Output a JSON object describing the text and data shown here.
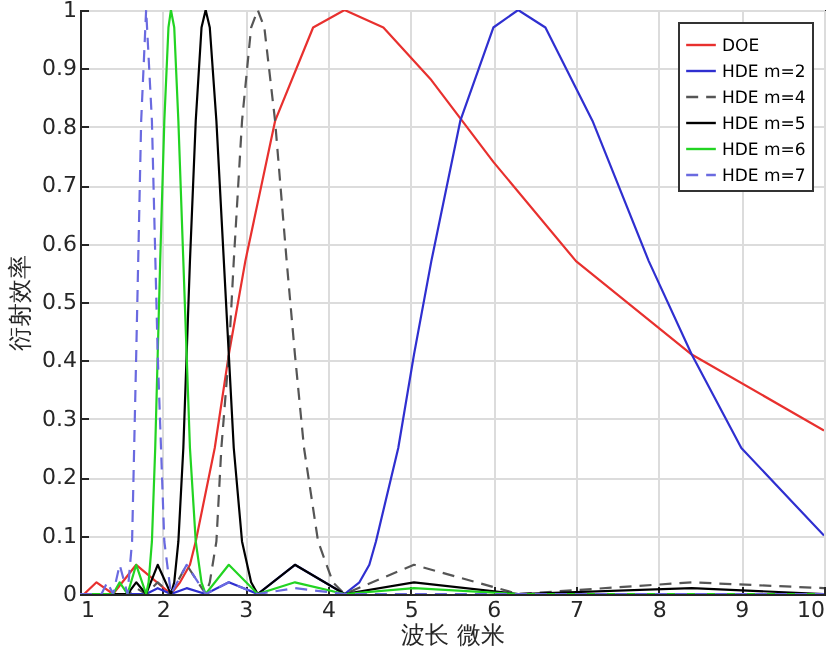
{
  "chart_data": {
    "type": "line",
    "xlabel": "波长 微米",
    "ylabel": "衍射效率",
    "xlim": [
      1,
      10
    ],
    "xticks": [
      1,
      2,
      3,
      4,
      5,
      6,
      7,
      8,
      9,
      10
    ],
    "ylim": [
      0,
      1
    ],
    "yticks": [
      0,
      0.1,
      0.2,
      0.3,
      0.4,
      0.5,
      0.6,
      0.7,
      0.8,
      0.9,
      1
    ],
    "grid": true,
    "legend": "top right",
    "series": [
      {
        "name": "DOE",
        "color": "#e8302e",
        "line_style": "solid",
        "x": [
          1,
          1.05,
          1.2,
          1.4,
          1.68,
          2.1,
          2.21,
          2.33,
          2.4,
          2.63,
          2.8,
          3.0,
          3.36,
          3.82,
          4.2,
          4.67,
          5.25,
          6.0,
          7.0,
          8.4,
          10
        ],
        "values": [
          0,
          0,
          0.02,
          0,
          0.05,
          0,
          0.02,
          0.05,
          0.09,
          0.25,
          0.41,
          0.57,
          0.81,
          0.97,
          1,
          0.97,
          0.88,
          0.74,
          0.57,
          0.41,
          0.28
        ]
      },
      {
        "name": "HDE m=2",
        "color": "#2f2fd0",
        "line_style": "solid",
        "x": [
          1,
          1.8,
          1.94,
          2.1,
          2.29,
          2.52,
          2.8,
          3.15,
          3.6,
          4.2,
          4.38,
          4.5,
          4.58,
          4.85,
          5.04,
          5.25,
          5.6,
          6.0,
          6.3,
          6.63,
          7.2,
          7.88,
          8.4,
          9.0,
          10
        ],
        "values": [
          0,
          0,
          0.01,
          0,
          0.01,
          0,
          0.02,
          0,
          0.05,
          0,
          0.02,
          0.05,
          0.09,
          0.25,
          0.41,
          0.57,
          0.81,
          0.97,
          1,
          0.97,
          0.81,
          0.57,
          0.41,
          0.25,
          0.1
        ]
      },
      {
        "name": "HDE m=4",
        "color": "#555555",
        "line_style": "dashed",
        "x": [
          1,
          1.575,
          1.68,
          1.8,
          1.94,
          2.1,
          2.29,
          2.52,
          2.57,
          2.65,
          2.71,
          2.8,
          2.86,
          2.96,
          3.07,
          3.15,
          3.23,
          3.36,
          3.5,
          3.6,
          3.71,
          3.88,
          4.06,
          4.2,
          5.04,
          6.3,
          8.4,
          10
        ],
        "values": [
          0,
          0,
          0.01,
          0,
          0.02,
          0,
          0.05,
          0,
          0.02,
          0.09,
          0.25,
          0.41,
          0.57,
          0.81,
          0.97,
          1,
          0.97,
          0.81,
          0.57,
          0.41,
          0.25,
          0.09,
          0.02,
          0,
          0.05,
          0,
          0.02,
          0.01
        ]
      },
      {
        "name": "HDE m=5",
        "color": "#000000",
        "line_style": "solid",
        "x": [
          1,
          1.575,
          1.68,
          1.8,
          1.94,
          2.1,
          2.14,
          2.19,
          2.25,
          2.29,
          2.33,
          2.4,
          2.47,
          2.52,
          2.57,
          2.65,
          2.74,
          2.8,
          2.86,
          2.96,
          3.07,
          3.15,
          3.6,
          4.2,
          5.04,
          6.3,
          8.4,
          10
        ],
        "values": [
          0,
          0,
          0.02,
          0,
          0.05,
          0,
          0.02,
          0.09,
          0.25,
          0.41,
          0.57,
          0.81,
          0.97,
          1,
          0.97,
          0.81,
          0.57,
          0.41,
          0.25,
          0.09,
          0.02,
          0,
          0.05,
          0,
          0.02,
          0,
          0.01,
          0
        ]
      },
      {
        "name": "HDE m=6",
        "color": "#22d422",
        "line_style": "solid",
        "x": [
          1,
          1.4,
          1.48,
          1.575,
          1.68,
          1.8,
          1.83,
          1.87,
          1.91,
          1.94,
          1.97,
          2.02,
          2.07,
          2.1,
          2.14,
          2.19,
          2.25,
          2.29,
          2.33,
          2.4,
          2.47,
          2.52,
          2.8,
          3.15,
          3.6,
          4.2,
          5.04,
          6.3,
          10
        ],
        "values": [
          0,
          0,
          0.02,
          0,
          0.05,
          0,
          0.02,
          0.09,
          0.25,
          0.41,
          0.57,
          0.81,
          0.97,
          1,
          0.97,
          0.81,
          0.57,
          0.41,
          0.25,
          0.09,
          0.02,
          0,
          0.05,
          0,
          0.02,
          0,
          0.01,
          0,
          0
        ]
      },
      {
        "name": "HDE m=7",
        "color": "#6a6ae0",
        "line_style": "dashed",
        "x": [
          1,
          1.26,
          1.33,
          1.4,
          1.48,
          1.575,
          1.63,
          1.68,
          1.74,
          1.8,
          1.87,
          1.94,
          2.02,
          2.1,
          2.29,
          2.52,
          2.8,
          3.15,
          3.6,
          4.2,
          6.3,
          10
        ],
        "values": [
          0,
          0,
          0.02,
          0,
          0.05,
          0,
          0.09,
          0.41,
          0.81,
          1,
          0.81,
          0.41,
          0.09,
          0,
          0.05,
          0,
          0.02,
          0,
          0.01,
          0,
          0,
          0
        ]
      }
    ]
  }
}
